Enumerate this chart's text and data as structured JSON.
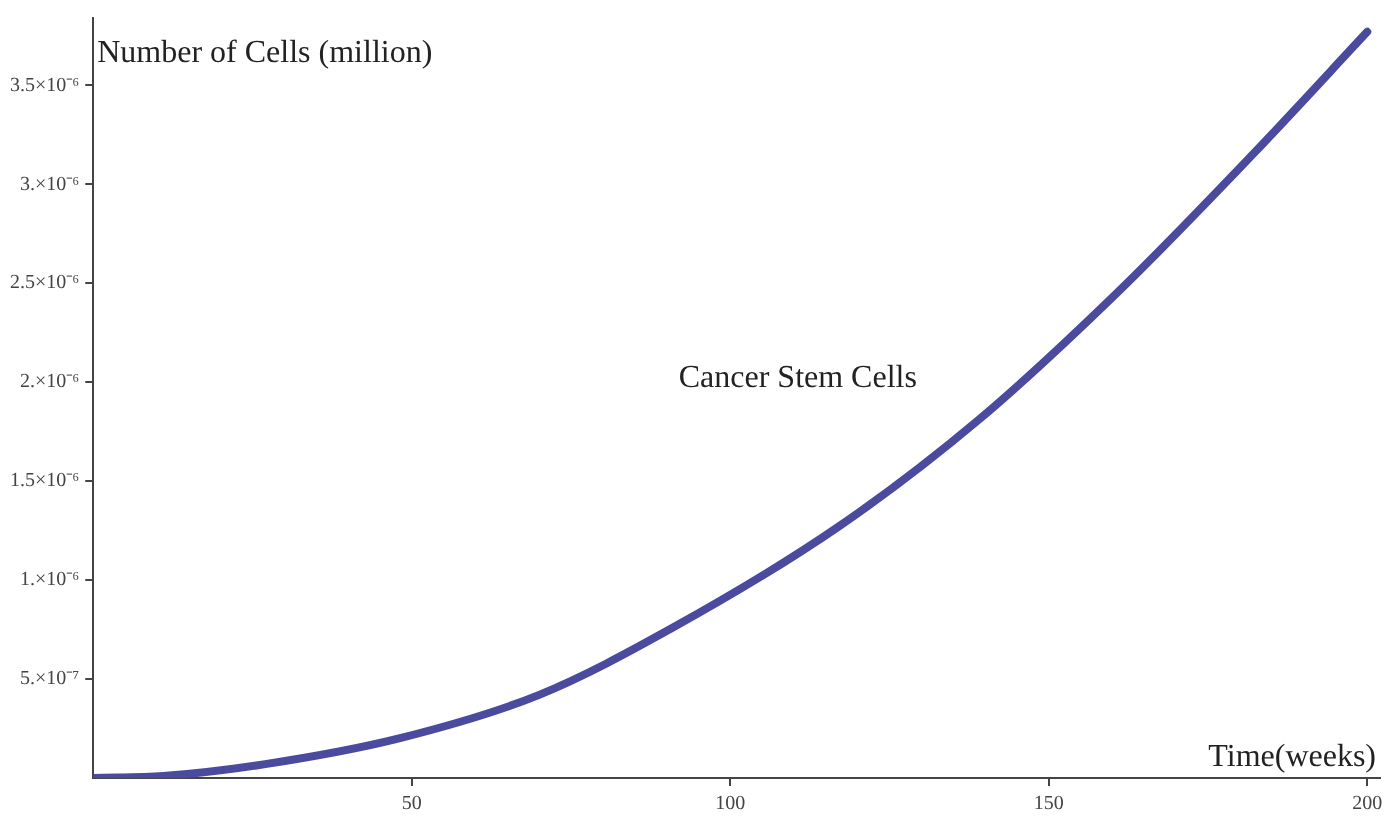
{
  "chart_data": {
    "type": "line",
    "xlabel": "Time(weeks)",
    "ylabel": "Number of Cells (million)",
    "xlim": [
      0,
      202
    ],
    "ylim": [
      0,
      3.84e-06
    ],
    "xticks": [
      50,
      100,
      150,
      200
    ],
    "yticks": [
      {
        "value": 5e-07,
        "label": "5.×10⁻⁷"
      },
      {
        "value": 1e-06,
        "label": "1.×10⁻⁶"
      },
      {
        "value": 1.5e-06,
        "label": "1.5×10⁻⁶"
      },
      {
        "value": 2e-06,
        "label": "2.×10⁻⁶"
      },
      {
        "value": 2.5e-06,
        "label": "2.5×10⁻⁶"
      },
      {
        "value": 3e-06,
        "label": "3.×10⁻⁶"
      },
      {
        "value": 3.5e-06,
        "label": "3.5×10⁻⁶"
      }
    ],
    "grid": false,
    "legend": false,
    "marker": "none",
    "line_style": "solid",
    "series": [
      {
        "name": "Cancer Stem Cells",
        "color": "#4a4a9e",
        "x": [
          0,
          11,
          27,
          48,
          70,
          91,
          117,
          139,
          161,
          182,
          200
        ],
        "values": [
          0,
          1e-08,
          7e-08,
          2e-07,
          4.2e-07,
          7.6e-07,
          1.27e-06,
          1.81e-06,
          2.46e-06,
          3.15e-06,
          3.77e-06
        ]
      }
    ]
  }
}
